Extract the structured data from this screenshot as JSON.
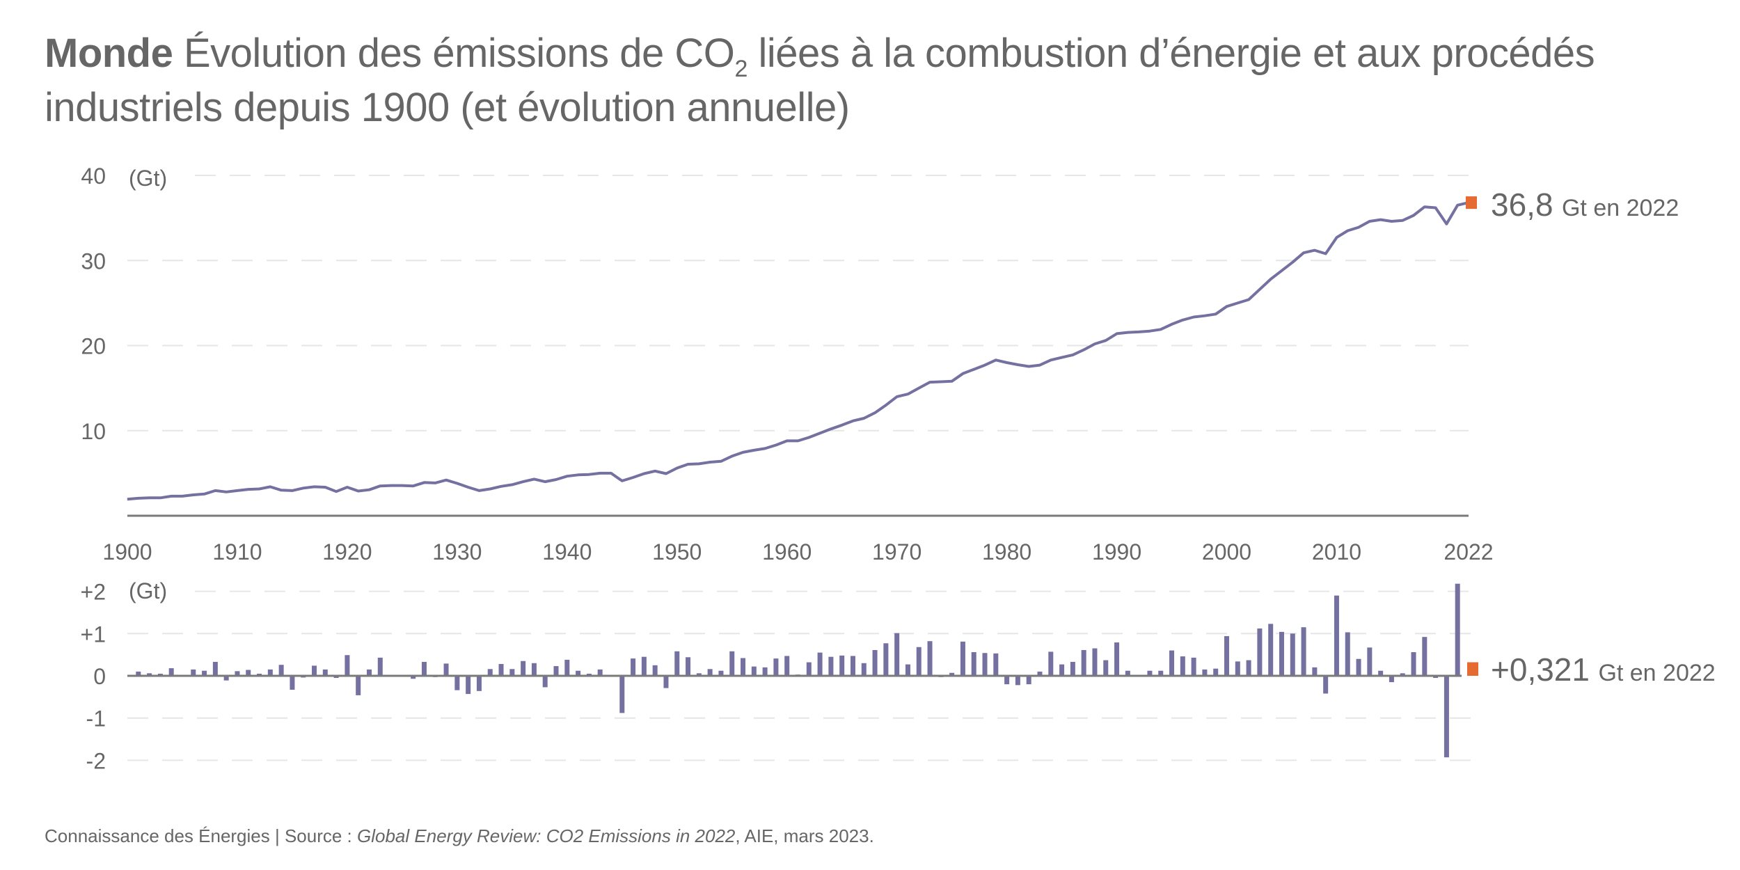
{
  "title": {
    "bold": "Monde",
    "line1_pre": "Évolution des émissions de CO",
    "subscript": "2",
    "line1_post": " liées à la combustion d’énergie et aux procédés",
    "line2": "industriels depuis 1900 (et évolution annuelle)"
  },
  "footer": {
    "prefix": "Connaissance des Énergies | Source : ",
    "italic": "Global Energy Review: CO2 Emissions in 2022",
    "suffix": ", AIE, mars 2023."
  },
  "colors": {
    "series": "#7470a0",
    "highlight": "#e56b31",
    "text": "#666666",
    "grid": "#e6e6e6",
    "axis": "#7a7a7a"
  },
  "chart_data": [
    {
      "type": "line",
      "title": "Émissions mondiales de CO2 (énergie et procédés industriels)",
      "ylabel": "(Gt)",
      "xlabel": "",
      "x_ticks": [
        "1900",
        "1910",
        "1920",
        "1930",
        "1940",
        "1950",
        "1960",
        "1970",
        "1980",
        "1990",
        "2000",
        "2010",
        "2022"
      ],
      "y_ticks": [
        "10",
        "20",
        "30",
        "40"
      ],
      "ylim": [
        0,
        40
      ],
      "xlim": [
        1900,
        2022
      ],
      "grid": true,
      "annotation": {
        "value": "36,8",
        "unit": "Gt en 2022"
      },
      "x": [
        1900,
        1901,
        1902,
        1903,
        1904,
        1905,
        1906,
        1907,
        1908,
        1909,
        1910,
        1911,
        1912,
        1913,
        1914,
        1915,
        1916,
        1917,
        1918,
        1919,
        1920,
        1921,
        1922,
        1923,
        1924,
        1925,
        1926,
        1927,
        1928,
        1929,
        1930,
        1931,
        1932,
        1933,
        1934,
        1935,
        1936,
        1937,
        1938,
        1939,
        1940,
        1941,
        1942,
        1943,
        1944,
        1945,
        1946,
        1947,
        1948,
        1949,
        1950,
        1951,
        1952,
        1953,
        1954,
        1955,
        1956,
        1957,
        1958,
        1959,
        1960,
        1961,
        1962,
        1963,
        1964,
        1965,
        1966,
        1967,
        1968,
        1969,
        1970,
        1971,
        1972,
        1973,
        1974,
        1975,
        1976,
        1977,
        1978,
        1979,
        1980,
        1981,
        1982,
        1983,
        1984,
        1985,
        1986,
        1987,
        1988,
        1989,
        1990,
        1991,
        1992,
        1993,
        1994,
        1995,
        1996,
        1997,
        1998,
        1999,
        2000,
        2001,
        2002,
        2003,
        2004,
        2005,
        2006,
        2007,
        2008,
        2009,
        2010,
        2011,
        2012,
        2013,
        2014,
        2015,
        2016,
        2017,
        2018,
        2019,
        2020,
        2021,
        2022
      ],
      "values": [
        1.95,
        2.05,
        2.1,
        2.1,
        2.3,
        2.3,
        2.45,
        2.55,
        2.95,
        2.8,
        2.95,
        3.1,
        3.15,
        3.4,
        3.0,
        2.95,
        3.25,
        3.4,
        3.35,
        2.85,
        3.35,
        2.9,
        3.05,
        3.5,
        3.55,
        3.55,
        3.5,
        3.9,
        3.85,
        4.2,
        3.8,
        3.35,
        2.95,
        3.15,
        3.45,
        3.65,
        4.0,
        4.3,
        4.0,
        4.25,
        4.65,
        4.8,
        4.85,
        5.0,
        5.0,
        4.1,
        4.5,
        4.95,
        5.25,
        4.95,
        5.6,
        6.05,
        6.1,
        6.3,
        6.4,
        7.0,
        7.45,
        7.7,
        7.9,
        8.3,
        8.8,
        8.8,
        9.2,
        9.7,
        10.2,
        10.65,
        11.15,
        11.45,
        12.1,
        13.0,
        14.0,
        14.3,
        15.0,
        15.7,
        15.75,
        15.8,
        16.7,
        17.2,
        17.7,
        18.3,
        18.0,
        17.75,
        17.55,
        17.7,
        18.3,
        18.6,
        18.9,
        19.5,
        20.2,
        20.6,
        21.4,
        21.55,
        21.6,
        21.7,
        21.9,
        22.5,
        23.0,
        23.35,
        23.5,
        23.7,
        24.6,
        25.0,
        25.4,
        26.6,
        27.8,
        28.8,
        29.8,
        30.9,
        31.2,
        30.8,
        32.7,
        33.5,
        33.9,
        34.6,
        34.8,
        34.6,
        34.7,
        35.3,
        36.3,
        36.2,
        34.3,
        36.5,
        36.8
      ]
    },
    {
      "type": "bar",
      "title": "Évolution annuelle des émissions",
      "ylabel": "(Gt)",
      "y_ticks": [
        "-2",
        "-1",
        "0",
        "+1",
        "+2"
      ],
      "ylim": [
        -2.2,
        2.2
      ],
      "grid": true,
      "annotation": {
        "value": "+0,321",
        "unit": "Gt en 2022"
      },
      "x": [
        1901,
        1902,
        1903,
        1904,
        1905,
        1906,
        1907,
        1908,
        1909,
        1910,
        1911,
        1912,
        1913,
        1914,
        1915,
        1916,
        1917,
        1918,
        1919,
        1920,
        1921,
        1922,
        1923,
        1924,
        1925,
        1926,
        1927,
        1928,
        1929,
        1930,
        1931,
        1932,
        1933,
        1934,
        1935,
        1936,
        1937,
        1938,
        1939,
        1940,
        1941,
        1942,
        1943,
        1944,
        1945,
        1946,
        1947,
        1948,
        1949,
        1950,
        1951,
        1952,
        1953,
        1954,
        1955,
        1956,
        1957,
        1958,
        1959,
        1960,
        1961,
        1962,
        1963,
        1964,
        1965,
        1966,
        1967,
        1968,
        1969,
        1970,
        1971,
        1972,
        1973,
        1974,
        1975,
        1976,
        1977,
        1978,
        1979,
        1980,
        1981,
        1982,
        1983,
        1984,
        1985,
        1986,
        1987,
        1988,
        1989,
        1990,
        1991,
        1992,
        1993,
        1994,
        1995,
        1996,
        1997,
        1998,
        1999,
        2000,
        2001,
        2002,
        2003,
        2004,
        2005,
        2006,
        2007,
        2008,
        2009,
        2010,
        2011,
        2012,
        2013,
        2014,
        2015,
        2016,
        2017,
        2018,
        2019,
        2020,
        2021,
        2022
      ],
      "values": [
        0.1,
        0.06,
        0.05,
        0.18,
        0.01,
        0.15,
        0.12,
        0.33,
        -0.11,
        0.11,
        0.14,
        0.05,
        0.15,
        0.26,
        -0.33,
        -0.04,
        0.24,
        0.15,
        -0.05,
        0.49,
        -0.46,
        0.15,
        0.43,
        0.0,
        0.01,
        -0.07,
        0.33,
        -0.03,
        0.29,
        -0.34,
        -0.43,
        -0.36,
        0.16,
        0.28,
        0.16,
        0.35,
        0.3,
        -0.27,
        0.23,
        0.38,
        0.12,
        0.05,
        0.15,
        0.0,
        -0.88,
        0.41,
        0.45,
        0.25,
        -0.29,
        0.58,
        0.44,
        0.06,
        0.16,
        0.12,
        0.58,
        0.42,
        0.22,
        0.2,
        0.41,
        0.47,
        0.03,
        0.32,
        0.55,
        0.45,
        0.48,
        0.47,
        0.3,
        0.61,
        0.77,
        1.01,
        0.27,
        0.68,
        0.82,
        -0.03,
        0.07,
        0.81,
        0.56,
        0.54,
        0.53,
        -0.2,
        -0.22,
        -0.2,
        0.1,
        0.57,
        0.27,
        0.33,
        0.61,
        0.65,
        0.37,
        0.79,
        0.12,
        0.01,
        0.12,
        0.12,
        0.6,
        0.46,
        0.43,
        0.15,
        0.17,
        0.94,
        0.34,
        0.37,
        1.12,
        1.23,
        1.04,
        1.0,
        1.15,
        0.2,
        -0.42,
        1.9,
        1.03,
        0.4,
        0.67,
        0.12,
        -0.15,
        0.06,
        0.56,
        0.92,
        -0.05,
        -1.93,
        2.18,
        0.321
      ]
    }
  ]
}
